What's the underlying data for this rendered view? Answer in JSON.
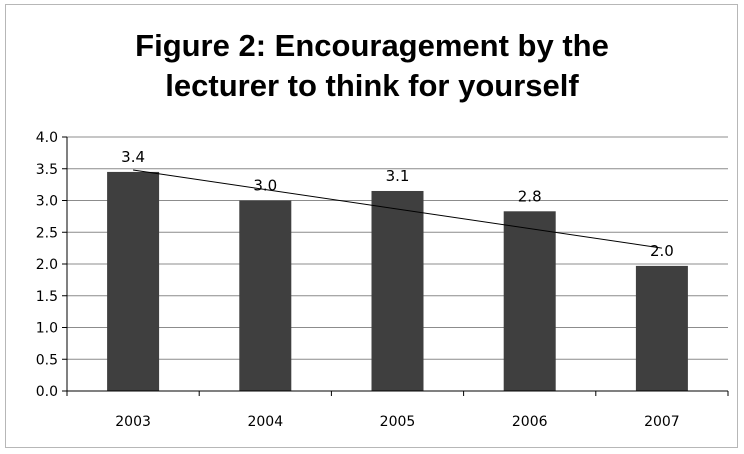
{
  "chart_data": {
    "type": "bar",
    "title_lines": [
      "Figure 2: Encouragement by the",
      "lecturer to think for yourself"
    ],
    "categories": [
      "2003",
      "2004",
      "2005",
      "2006",
      "2007"
    ],
    "values": [
      3.45,
      3.0,
      3.15,
      2.83,
      1.97
    ],
    "data_labels": [
      "3.4",
      "3.0",
      "3.1",
      "2.8",
      "2.0"
    ],
    "yticks": [
      "0.0",
      "0.5",
      "1.0",
      "1.5",
      "2.0",
      "2.5",
      "3.0",
      "3.5",
      "4.0"
    ],
    "ylim": [
      0,
      4
    ],
    "grid": true,
    "legend": "none",
    "bar_color": "#3f3f3f",
    "trendline": {
      "type": "linear",
      "start": 3.48,
      "end": 2.25
    }
  }
}
